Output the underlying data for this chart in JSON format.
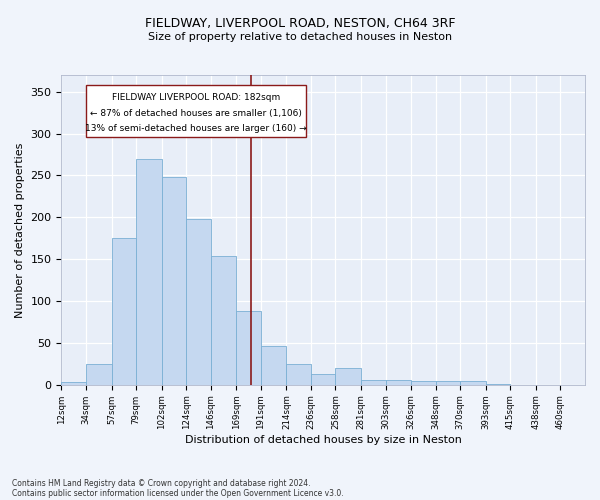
{
  "title": "FIELDWAY, LIVERPOOL ROAD, NESTON, CH64 3RF",
  "subtitle": "Size of property relative to detached houses in Neston",
  "xlabel": "Distribution of detached houses by size in Neston",
  "ylabel": "Number of detached properties",
  "bar_color": "#c5d8f0",
  "bar_edge_color": "#7aafd4",
  "background_color": "#e8eef8",
  "fig_background": "#f0f4fb",
  "vline_color": "#8b1a1a",
  "vline_value": 182,
  "categories": [
    "12sqm",
    "34sqm",
    "57sqm",
    "79sqm",
    "102sqm",
    "124sqm",
    "146sqm",
    "169sqm",
    "191sqm",
    "214sqm",
    "236sqm",
    "258sqm",
    "281sqm",
    "303sqm",
    "326sqm",
    "348sqm",
    "370sqm",
    "393sqm",
    "415sqm",
    "438sqm",
    "460sqm"
  ],
  "bin_edges": [
    12,
    34,
    57,
    79,
    102,
    124,
    146,
    169,
    191,
    214,
    236,
    258,
    281,
    303,
    326,
    348,
    370,
    393,
    415,
    438,
    460
  ],
  "values": [
    3,
    25,
    175,
    270,
    248,
    198,
    154,
    88,
    46,
    25,
    13,
    20,
    6,
    6,
    4,
    5,
    5,
    1,
    0,
    0,
    0
  ],
  "ylim": [
    0,
    370
  ],
  "yticks": [
    0,
    50,
    100,
    150,
    200,
    250,
    300,
    350
  ],
  "annotation_title": "FIELDWAY LIVERPOOL ROAD: 182sqm",
  "annotation_line1": "← 87% of detached houses are smaller (1,106)",
  "annotation_line2": "13% of semi-detached houses are larger (160) →",
  "footnote1": "Contains HM Land Registry data © Crown copyright and database right 2024.",
  "footnote2": "Contains public sector information licensed under the Open Government Licence v3.0."
}
